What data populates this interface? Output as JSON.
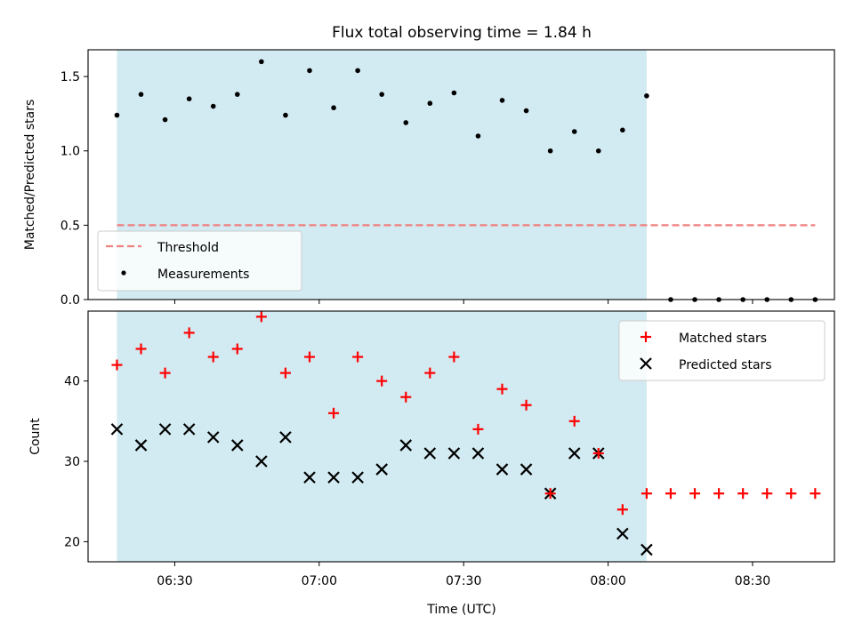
{
  "chart_data": [
    {
      "type": "scatter",
      "title": "Flux total observing time = 1.84 h",
      "xlabel": "",
      "ylabel": "Matched/Predicted stars",
      "ylim": [
        0,
        1.68
      ],
      "yticks": [
        "0.0",
        "0.5",
        "1.0",
        "1.5"
      ],
      "observing_window": [
        "06:18",
        "08:08"
      ],
      "observing_color": "#add8e6",
      "threshold": {
        "name": "Threshold",
        "value": 0.5,
        "x_range": [
          "06:18",
          "08:43"
        ],
        "color": "#f08080"
      },
      "series": [
        {
          "name": "Measurements",
          "color": "#000000",
          "x": [
            "06:18",
            "06:23",
            "06:28",
            "06:33",
            "06:38",
            "06:43",
            "06:48",
            "06:53",
            "06:58",
            "07:03",
            "07:08",
            "07:13",
            "07:18",
            "07:23",
            "07:28",
            "07:33",
            "07:38",
            "07:43",
            "07:48",
            "07:53",
            "07:58",
            "08:03",
            "08:08",
            "08:13",
            "08:18",
            "08:23",
            "08:28",
            "08:33",
            "08:38",
            "08:43"
          ],
          "values": [
            1.24,
            1.38,
            1.21,
            1.35,
            1.3,
            1.38,
            1.6,
            1.24,
            1.54,
            1.29,
            1.54,
            1.38,
            1.19,
            1.32,
            1.39,
            1.1,
            1.34,
            1.27,
            1.0,
            1.13,
            1.0,
            1.14,
            1.37,
            0,
            0,
            0,
            0,
            0,
            0,
            0
          ]
        }
      ],
      "legend": {
        "placement": "lower-left",
        "entries": [
          "Threshold",
          "Measurements"
        ]
      }
    },
    {
      "type": "scatter",
      "title": "",
      "xlabel": "Time (UTC)",
      "ylabel": "Count",
      "xticks": [
        "06:30",
        "07:00",
        "07:30",
        "08:00",
        "08:30"
      ],
      "xlim": [
        "06:12",
        "08:47"
      ],
      "ylim": [
        17.5,
        48.7
      ],
      "yticks": [
        "20",
        "30",
        "40"
      ],
      "observing_window": [
        "06:18",
        "08:08"
      ],
      "series": [
        {
          "name": "Matched stars",
          "marker": "plus",
          "color": "#ff0000",
          "x": [
            "06:18",
            "06:23",
            "06:28",
            "06:33",
            "06:38",
            "06:43",
            "06:48",
            "06:53",
            "06:58",
            "07:03",
            "07:08",
            "07:13",
            "07:18",
            "07:23",
            "07:28",
            "07:33",
            "07:38",
            "07:43",
            "07:48",
            "07:53",
            "07:58",
            "08:03",
            "08:08",
            "08:13",
            "08:18",
            "08:23",
            "08:28",
            "08:33",
            "08:38",
            "08:43"
          ],
          "values": [
            42,
            44,
            41,
            46,
            43,
            44,
            48,
            41,
            43,
            36,
            43,
            40,
            38,
            41,
            43,
            34,
            39,
            37,
            26,
            35,
            31,
            24,
            26,
            26,
            26,
            26,
            26,
            26,
            26,
            26
          ]
        },
        {
          "name": "Predicted stars",
          "marker": "x",
          "color": "#000000",
          "x": [
            "06:18",
            "06:23",
            "06:28",
            "06:33",
            "06:38",
            "06:43",
            "06:48",
            "06:53",
            "06:58",
            "07:03",
            "07:08",
            "07:13",
            "07:18",
            "07:23",
            "07:28",
            "07:33",
            "07:38",
            "07:43",
            "07:48",
            "07:53",
            "07:58",
            "08:03",
            "08:08"
          ],
          "values": [
            34,
            32,
            34,
            34,
            33,
            32,
            30,
            33,
            28,
            28,
            28,
            29,
            32,
            31,
            31,
            31,
            29,
            29,
            26,
            31,
            31,
            21,
            19
          ]
        }
      ],
      "legend": {
        "placement": "upper-right",
        "entries": [
          "Matched stars",
          "Predicted stars"
        ]
      }
    }
  ]
}
